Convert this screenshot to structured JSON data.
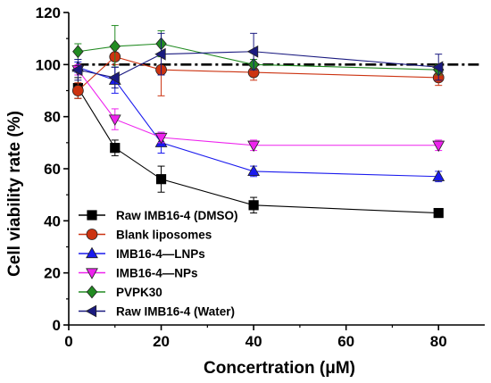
{
  "chart_data": {
    "type": "line",
    "title": "",
    "xlabel": "Concertration (μM)",
    "ylabel": "Cell viability rate (%)",
    "xlim": [
      0,
      90
    ],
    "ylim": [
      0,
      120
    ],
    "xticks": [
      0,
      20,
      40,
      60,
      80
    ],
    "yticks": [
      0,
      20,
      40,
      60,
      80,
      100,
      120
    ],
    "grid": false,
    "legend_position": "bottom-left",
    "reference_line": {
      "y": 100,
      "style": "dash-dot",
      "color": "#000000"
    },
    "x": [
      2,
      10,
      20,
      40,
      80
    ],
    "series": [
      {
        "name": "Raw IMB16-4 (DMSO)",
        "color": "#000000",
        "marker": "square",
        "values": [
          91,
          68,
          56,
          46,
          43
        ],
        "errors": [
          4,
          3,
          5,
          3,
          1
        ]
      },
      {
        "name": "Blank liposomes",
        "color": "#cc3311",
        "marker": "circle",
        "values": [
          90,
          103,
          98,
          97,
          95
        ],
        "errors": [
          3,
          3,
          10,
          3,
          3
        ]
      },
      {
        "name": "IMB16-4—LNPs",
        "color": "#1a1aee",
        "marker": "triangle-up",
        "values": [
          99,
          94,
          70,
          59,
          57
        ],
        "errors": [
          2,
          5,
          4,
          2,
          2
        ]
      },
      {
        "name": "IMB16-4—NPs",
        "color": "#ee22ee",
        "marker": "triangle-down",
        "values": [
          98,
          79,
          72,
          69,
          69
        ],
        "errors": [
          2,
          4,
          2,
          2,
          2
        ]
      },
      {
        "name": "PVPK30",
        "color": "#228b22",
        "marker": "diamond",
        "values": [
          105,
          107,
          108,
          100,
          98
        ],
        "errors": [
          3,
          8,
          5,
          2,
          2
        ]
      },
      {
        "name": "Raw IMB16-4 (Water)",
        "color": "#1a1a80",
        "marker": "triangle-left",
        "values": [
          98,
          95,
          104,
          105,
          99
        ],
        "errors": [
          4,
          4,
          8,
          7,
          5
        ]
      }
    ]
  }
}
